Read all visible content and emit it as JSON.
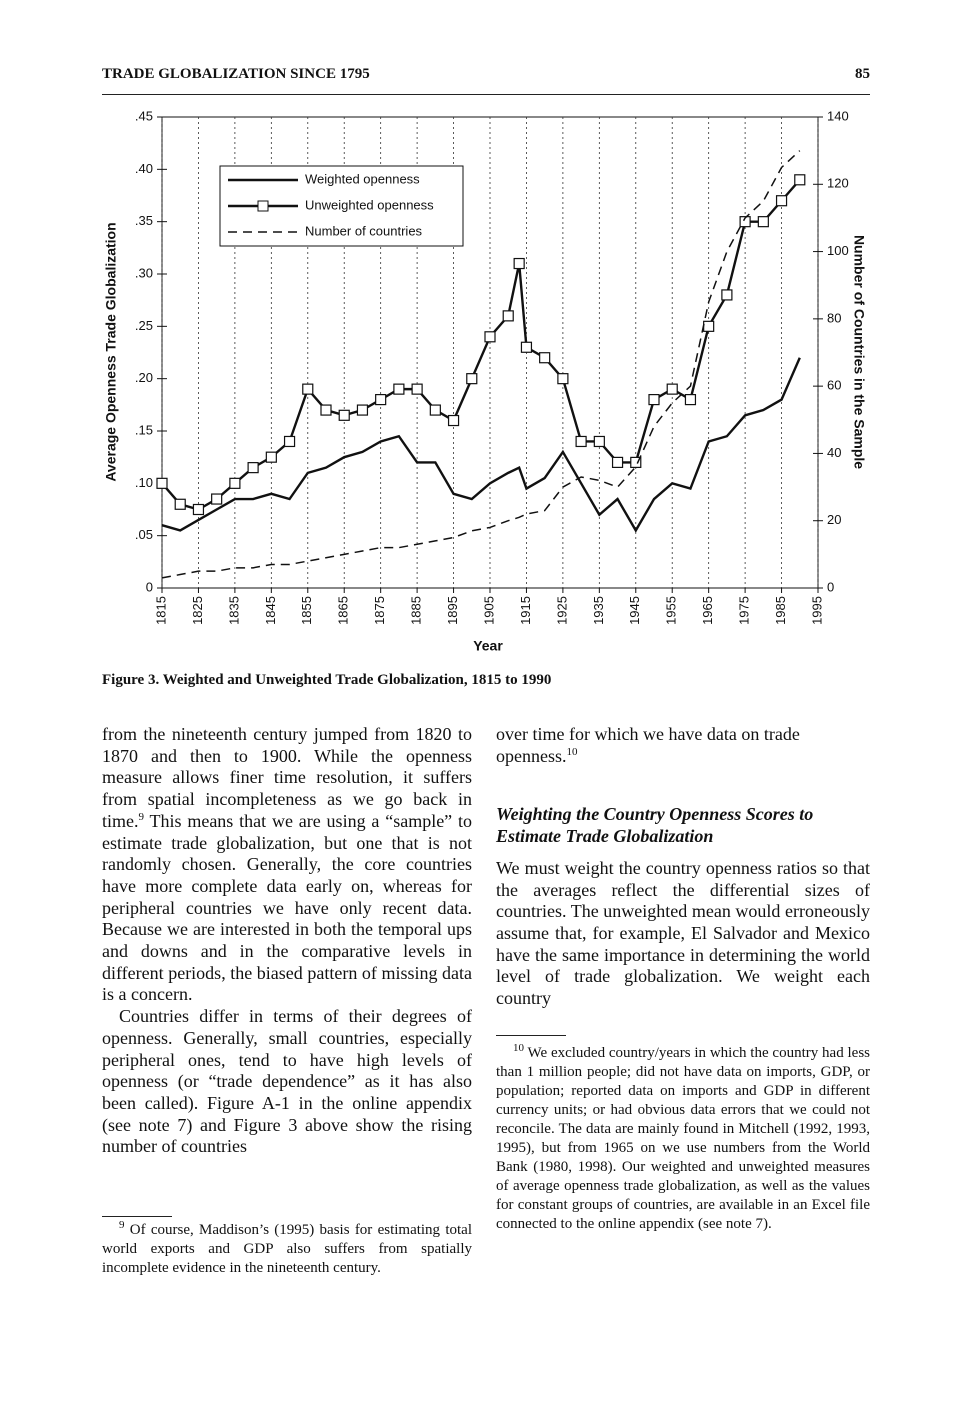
{
  "header": {
    "title": "TRADE GLOBALIZATION SINCE 1795",
    "page": "85"
  },
  "chart_data": {
    "type": "line",
    "xlabel": "Year",
    "ylabel": "Average Openness Trade Globalization",
    "y2label": "Number of Countries in the Sample",
    "x": [
      1815,
      1820,
      1825,
      1830,
      1835,
      1840,
      1845,
      1850,
      1855,
      1860,
      1865,
      1870,
      1875,
      1880,
      1885,
      1890,
      1895,
      1900,
      1905,
      1910,
      1913,
      1915,
      1920,
      1925,
      1930,
      1935,
      1940,
      1945,
      1950,
      1955,
      1960,
      1965,
      1970,
      1975,
      1980,
      1985,
      1990
    ],
    "series": [
      {
        "name": "Weighted openness",
        "color": "#111111",
        "line_style": "solid",
        "marker": "none",
        "values": [
          0.06,
          0.055,
          0.065,
          0.075,
          0.085,
          0.085,
          0.09,
          0.085,
          0.11,
          0.115,
          0.125,
          0.13,
          0.14,
          0.145,
          0.12,
          0.12,
          0.09,
          0.085,
          0.1,
          0.11,
          0.115,
          0.095,
          0.105,
          0.13,
          0.1,
          0.07,
          0.085,
          0.055,
          0.085,
          0.1,
          0.095,
          0.14,
          0.145,
          0.165,
          0.17,
          0.18,
          0.22
        ]
      },
      {
        "name": "Unweighted openness",
        "color": "#111111",
        "line_style": "solid",
        "marker": "square",
        "values": [
          0.1,
          0.08,
          0.075,
          0.085,
          0.1,
          0.115,
          0.125,
          0.14,
          0.19,
          0.17,
          0.165,
          0.17,
          0.18,
          0.19,
          0.19,
          0.17,
          0.16,
          0.2,
          0.24,
          0.26,
          0.31,
          0.23,
          0.22,
          0.2,
          0.14,
          0.14,
          0.12,
          0.12,
          0.18,
          0.19,
          0.18,
          0.25,
          0.28,
          0.35,
          0.35,
          0.37,
          0.39
        ]
      },
      {
        "name": "Number of countries",
        "color": "#111111",
        "line_style": "dashed",
        "marker": "none",
        "axis": "y2",
        "values": [
          3,
          4,
          5,
          5,
          6,
          6,
          7,
          7,
          8,
          9,
          10,
          11,
          12,
          12,
          13,
          14,
          15,
          17,
          18,
          20,
          21,
          22,
          23,
          30,
          33,
          32,
          30,
          36,
          48,
          55,
          60,
          85,
          100,
          110,
          115,
          125,
          130
        ]
      }
    ],
    "xlim": [
      1815,
      1995
    ],
    "xticks": [
      1815,
      1825,
      1835,
      1845,
      1855,
      1865,
      1875,
      1885,
      1895,
      1905,
      1915,
      1925,
      1935,
      1945,
      1955,
      1965,
      1975,
      1985,
      1995
    ],
    "ylim": [
      0,
      0.45
    ],
    "yticks": [
      0,
      {
        "value": 0.05,
        "label": ".05"
      },
      {
        "value": 0.1,
        "label": ".10"
      },
      {
        "value": 0.15,
        "label": ".15"
      },
      {
        "value": 0.2,
        "label": ".20"
      },
      {
        "value": 0.25,
        "label": ".25"
      },
      {
        "value": 0.3,
        "label": ".30"
      },
      {
        "value": 0.35,
        "label": ".35"
      },
      {
        "value": 0.4,
        "label": ".40"
      },
      {
        "value": 0.45,
        "label": ".45"
      }
    ],
    "y2lim": [
      0,
      140
    ],
    "y2ticks": [
      0,
      20,
      40,
      60,
      80,
      100,
      120,
      140
    ],
    "grid": "x",
    "legend": "upper left"
  },
  "figure_caption": "Figure 3. Weighted and Unweighted Trade Globalization, 1815 to 1990",
  "left_column": {
    "paragraph_1": [
      "from the nineteenth century jumped from 1820 to 1870 and then to 1900. While the openness measure allows finer time resolution, it suffers from spatial incompleteness as we go back in time.",
      "9",
      " This means that we are using a “sample” to estimate trade globalization, but one that is not randomly chosen. Generally, the core countries have more complete data early on, whereas for peripheral countries we have only recent data. Because we are interested in both the temporal ups and downs and in the comparative levels in different periods, the biased pattern of missing data is a concern."
    ],
    "paragraph_2": "Countries differ in terms of their degrees of openness. Generally, small countries, especially peripheral ones, tend to have high levels of openness (or “trade dependence” as it has also been called). Figure A-1 in the online appendix (see note 7) and Figure 3 above show the rising number of countries",
    "footnote": [
      "9",
      " Of course, Maddison’s (1995) basis for estimating total world exports and GDP also suffers from spatially incomplete evidence in the nineteenth century."
    ]
  },
  "right_column": {
    "paragraph_1": [
      "over time for which we have data on trade openness.",
      "10"
    ],
    "heading": "Weighting the Country Openness Scores to Estimate Trade Globalization",
    "paragraph_2": "We must weight the country openness ratios so that the averages reflect the differential sizes of countries. The unweighted mean would erroneously assume that, for example, El Salvador and Mexico have the same importance in determining the world level of trade globalization. We weight each country",
    "footnote": [
      "10",
      " We excluded country/years in which the country had less than 1 million people; did not have data on imports, GDP, or population; reported data on imports and GDP in different currency units; or had obvious data errors that we could not reconcile. The data are mainly found in Mitchell (1992, 1993, 1995), but from 1965 on we use numbers from the World Bank (1980, 1998). Our weighted and unweighted measures of average openness trade globalization, as well as the values for constant groups of countries, are available in an Excel file connected to the online appendix (see note 7)."
    ]
  }
}
